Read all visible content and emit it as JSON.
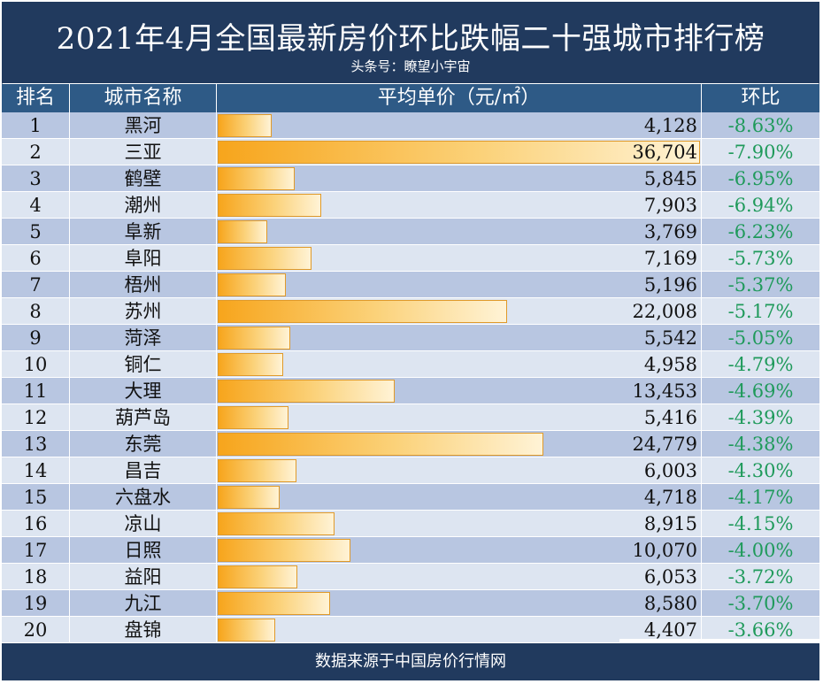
{
  "title": "2021年4月全国最新房价环比跌幅二十强城市排行榜",
  "subtitle": "头条号：瞭望小宇宙",
  "footer": "数据来源于中国房价行情网",
  "colors": {
    "title_bg": "#213a5e",
    "header_bg": "#2e5a86",
    "row_odd": "#b8c6e1",
    "row_even": "#dde5f1",
    "bar": "#f7a51c",
    "change_text": "#1f9a5b"
  },
  "chart_data": {
    "type": "table",
    "columns": [
      "排名",
      "城市名称",
      "平均单价（元/㎡）",
      "环比"
    ],
    "bar_column": "平均单价（元/㎡）",
    "rows": [
      {
        "rank": "1",
        "city": "黑河",
        "price": 4128,
        "price_text": "4,128",
        "change": "-8.63%"
      },
      {
        "rank": "2",
        "city": "三亚",
        "price": 36704,
        "price_text": "36,704",
        "change": "-7.90%"
      },
      {
        "rank": "3",
        "city": "鹤壁",
        "price": 5845,
        "price_text": "5,845",
        "change": "-6.95%"
      },
      {
        "rank": "4",
        "city": "潮州",
        "price": 7903,
        "price_text": "7,903",
        "change": "-6.94%"
      },
      {
        "rank": "5",
        "city": "阜新",
        "price": 3769,
        "price_text": "3,769",
        "change": "-6.23%"
      },
      {
        "rank": "6",
        "city": "阜阳",
        "price": 7169,
        "price_text": "7,169",
        "change": "-5.73%"
      },
      {
        "rank": "7",
        "city": "梧州",
        "price": 5196,
        "price_text": "5,196",
        "change": "-5.37%"
      },
      {
        "rank": "8",
        "city": "苏州",
        "price": 22008,
        "price_text": "22,008",
        "change": "-5.17%"
      },
      {
        "rank": "9",
        "city": "菏泽",
        "price": 5542,
        "price_text": "5,542",
        "change": "-5.05%"
      },
      {
        "rank": "10",
        "city": "铜仁",
        "price": 4958,
        "price_text": "4,958",
        "change": "-4.79%"
      },
      {
        "rank": "11",
        "city": "大理",
        "price": 13453,
        "price_text": "13,453",
        "change": "-4.69%"
      },
      {
        "rank": "12",
        "city": "葫芦岛",
        "price": 5416,
        "price_text": "5,416",
        "change": "-4.39%"
      },
      {
        "rank": "13",
        "city": "东莞",
        "price": 24779,
        "price_text": "24,779",
        "change": "-4.38%"
      },
      {
        "rank": "14",
        "city": "昌吉",
        "price": 6003,
        "price_text": "6,003",
        "change": "-4.30%"
      },
      {
        "rank": "15",
        "city": "六盘水",
        "price": 4718,
        "price_text": "4,718",
        "change": "-4.17%"
      },
      {
        "rank": "16",
        "city": "凉山",
        "price": 8915,
        "price_text": "8,915",
        "change": "-4.15%"
      },
      {
        "rank": "17",
        "city": "日照",
        "price": 10070,
        "price_text": "10,070",
        "change": "-4.00%"
      },
      {
        "rank": "18",
        "city": "益阳",
        "price": 6053,
        "price_text": "6,053",
        "change": "-3.72%"
      },
      {
        "rank": "19",
        "city": "九江",
        "price": 8580,
        "price_text": "8,580",
        "change": "-3.70%"
      },
      {
        "rank": "20",
        "city": "盘锦",
        "price": 4407,
        "price_text": "4,407",
        "change": "-3.66%"
      }
    ]
  }
}
